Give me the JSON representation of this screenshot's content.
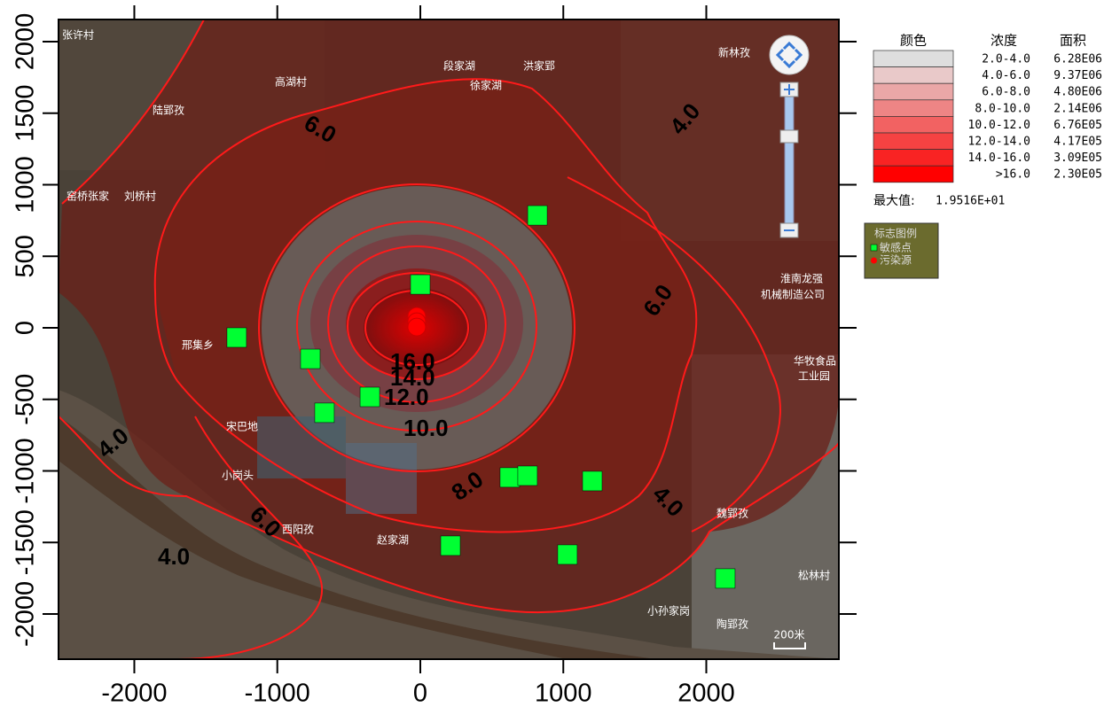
{
  "axes": {
    "xlim": [
      -2530,
      2927
    ],
    "xticks": [
      -2000,
      -1000,
      0,
      1000,
      2000
    ],
    "ylim": [
      -2316,
      2155
    ],
    "yticks": [
      -2000,
      -1500,
      -1000,
      -500,
      0,
      500,
      1000,
      1500,
      2000
    ]
  },
  "contour_labels": [
    "6.0",
    "4.0",
    "6.0",
    "16.0",
    "14.0",
    "12.0",
    "10.0",
    "8.0",
    "4.0",
    "4.0",
    "6.0",
    "4.0"
  ],
  "sensitive_points": [
    {
      "x": 0,
      "y": 303
    },
    {
      "x": 819,
      "y": 786
    },
    {
      "x": -1284,
      "y": -68
    },
    {
      "x": -769,
      "y": -217
    },
    {
      "x": -353,
      "y": -483
    },
    {
      "x": -670,
      "y": -594
    },
    {
      "x": 626,
      "y": -1046
    },
    {
      "x": 750,
      "y": -1034
    },
    {
      "x": 1203,
      "y": -1071
    },
    {
      "x": 211,
      "y": -1523
    },
    {
      "x": 1029,
      "y": -1585
    },
    {
      "x": 2133,
      "y": -1752
    }
  ],
  "sensitive_color": "#00ff33",
  "pollution_source": {
    "x": -25,
    "y": 80,
    "color": "#ff0000"
  },
  "place_names": [
    "张许村",
    "高湖村",
    "段家湖",
    "洪家郢",
    "陆郢孜",
    "徐家湖",
    "新林孜",
    "窑桥张家",
    "刘桥村",
    "淮南龙强",
    "机械制造公司",
    "华牧食品",
    "工业园",
    "邢集乡",
    "宋巴地",
    "小岗头",
    "西阳孜",
    "赵家湖",
    "魏郢孜",
    "松林村",
    "小孙家岗",
    "陶郢孜"
  ],
  "legend": {
    "headers": [
      "颜色",
      "浓度",
      "面积"
    ],
    "rows": [
      {
        "color": "#dedede",
        "range": "2.0-4.0",
        "area": "6.28E06"
      },
      {
        "color": "#e9c9c9",
        "range": "4.0-6.0",
        "area": "9.37E06"
      },
      {
        "color": "#eaa7a7",
        "range": "6.0-8.0",
        "area": "4.80E06"
      },
      {
        "color": "#ee8585",
        "range": "8.0-10.0",
        "area": "2.14E06"
      },
      {
        "color": "#f26262",
        "range": "10.0-12.0",
        "area": "6.76E05"
      },
      {
        "color": "#f54242",
        "range": "12.0-14.0",
        "area": "4.17E05"
      },
      {
        "color": "#f92323",
        "range": "14.0-16.0",
        "area": "3.09E05"
      },
      {
        "color": "#ff0000",
        "range": ">16.0",
        "area": "2.30E05"
      }
    ],
    "max_label": "最大值:",
    "max_value": "1.9516E+01"
  },
  "marker_legend": {
    "title": "标志图例",
    "items": [
      "敏感点",
      "污染源"
    ]
  },
  "scale_bar": "200米"
}
